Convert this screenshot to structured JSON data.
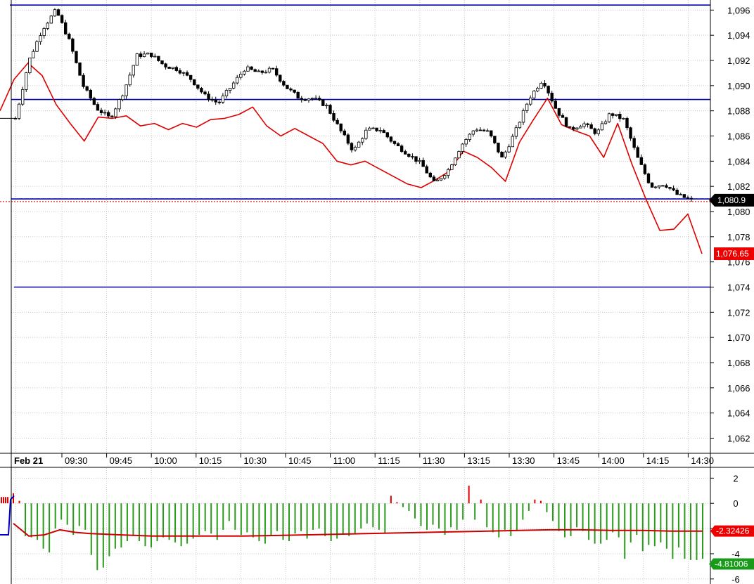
{
  "chart_data": [
    {
      "type": "candlestick",
      "panel": "price",
      "date_label": "Feb 21",
      "time_labels": [
        "09:30",
        "09:45",
        "10:00",
        "10:15",
        "10:30",
        "10:45",
        "11:00",
        "11:15",
        "11:30",
        "13:15",
        "13:30",
        "13:45",
        "14:00",
        "14:15",
        "14:30"
      ],
      "y_ticks": [
        "1,096",
        "1,094",
        "1,092",
        "1,090",
        "1,088",
        "1,086",
        "1,084",
        "1,082",
        "1,080",
        "1,078",
        "1,076",
        "1,074",
        "1,072",
        "1,070",
        "1,068",
        "1,066",
        "1,064",
        "1,062"
      ],
      "y_tick_values": [
        1096,
        1094,
        1092,
        1090,
        1088,
        1086,
        1084,
        1082,
        1080,
        1078,
        1076,
        1074,
        1072,
        1070,
        1068,
        1066,
        1064,
        1062
      ],
      "ylim": [
        1060.8,
        1096.8
      ],
      "horizontal_lines": [
        1096.4,
        1088.9,
        1081.0,
        1074.0
      ],
      "horizontal_line_color": "#0000aa",
      "last_price_label": "1,080.9",
      "last_price": 1080.9,
      "price_closes": [
        1087.4,
        1092.0,
        1094.5,
        1096.0,
        1093.5,
        1090.0,
        1088.2,
        1087.4,
        1089.5,
        1092.4,
        1092.5,
        1091.6,
        1091.3,
        1090.5,
        1089.2,
        1088.6,
        1090.0,
        1091.4,
        1091.0,
        1091.3,
        1089.9,
        1089.0,
        1089.0,
        1088.4,
        1086.5,
        1084.8,
        1086.5,
        1086.5,
        1085.4,
        1084.6,
        1083.8,
        1082.2,
        1083.3,
        1085.3,
        1086.6,
        1086.3,
        1084.2,
        1086.4,
        1089.0,
        1090.5,
        1088.1,
        1086.5,
        1087.0,
        1086.2,
        1087.8,
        1087.3,
        1084.3,
        1082.0,
        1082.2,
        1081.3,
        1080.9
      ],
      "series_colors": {
        "price": "#000000",
        "reference": "#dd0000"
      },
      "reference_label": "1,076.65",
      "reference_values": [
        1088.0,
        1090.5,
        1091.8,
        1090.8,
        1088.5,
        1087.0,
        1085.6,
        1087.5,
        1087.4,
        1087.6,
        1086.8,
        1087.0,
        1086.5,
        1087.0,
        1086.7,
        1087.3,
        1087.4,
        1087.7,
        1088.3,
        1086.8,
        1086.0,
        1086.6,
        1086.0,
        1085.4,
        1084.0,
        1083.7,
        1084.0,
        1083.4,
        1082.8,
        1082.2,
        1081.9,
        1082.5,
        1083.2,
        1084.8,
        1084.3,
        1083.5,
        1082.4,
        1085.5,
        1087.3,
        1089.0,
        1086.9,
        1086.4,
        1086.0,
        1084.3,
        1087.0,
        1083.8,
        1081.0,
        1078.5,
        1078.6,
        1079.8,
        1076.65
      ]
    },
    {
      "type": "bar",
      "panel": "oscillator",
      "y_ticks": [
        "2",
        "0",
        "-2",
        "-4",
        "-6"
      ],
      "y_tick_values": [
        2,
        0,
        -2,
        -4,
        -6
      ],
      "ylim": [
        -6.4,
        2.8
      ],
      "histogram_values": [
        0.8,
        0.2,
        -2.6,
        -2.7,
        -2.9,
        -3.6,
        -3.9,
        -2.0,
        -1.3,
        -1.7,
        -2.5,
        -1.8,
        -2.1,
        -4.1,
        -5.3,
        -5.1,
        -4.2,
        -3.6,
        -3.5,
        -3.0,
        -2.6,
        -3.0,
        -3.4,
        -3.5,
        -3.0,
        -2.7,
        -2.9,
        -3.1,
        -3.4,
        -3.2,
        -2.8,
        -2.5,
        -2.2,
        -2.4,
        -2.9,
        -2.1,
        -1.4,
        -2.1,
        -2.5,
        -2.3,
        -2.7,
        -3.0,
        -3.2,
        -2.6,
        -2.2,
        -2.9,
        -3.0,
        -2.4,
        -2.2,
        -2.8,
        -2.1,
        -2.0,
        -2.6,
        -3.0,
        -2.8,
        -2.4,
        -2.6,
        -2.4,
        -2.0,
        -1.6,
        -1.9,
        -2.1,
        -2.4,
        0.6,
        0.1,
        -0.3,
        -0.6,
        -1.2,
        -1.8,
        -2.1,
        -1.7,
        -2.0,
        -2.5,
        -1.9,
        -2.1,
        -1.3,
        1.4,
        -1.3,
        0.3,
        -1.9,
        -2.3,
        -2.7,
        -2.1,
        -2.6,
        -2.2,
        -1.3,
        -0.6,
        0.3,
        0.2,
        -0.7,
        -1.4,
        -2.2,
        -2.7,
        -2.6,
        -1.9,
        -2.2,
        -2.9,
        -3.2,
        -3.2,
        -2.9,
        -2.3,
        -2.7,
        -4.4,
        -3.1,
        -2.5,
        -3.8,
        -3.3,
        -3.4,
        -3.1,
        -3.6,
        -4.4,
        -3.5,
        -4.4,
        -4.5,
        -4.5,
        -4.4
      ],
      "signal_values": [
        -1.6,
        -2.6,
        -2.5,
        -2.1,
        -2.3,
        -2.4,
        -2.5,
        -2.6,
        -2.6,
        -2.6,
        -2.6,
        -2.55,
        -2.5,
        -2.45,
        -2.4,
        -2.35,
        -2.3,
        -2.25,
        -2.2,
        -2.15,
        -2.1,
        -2.1,
        -2.15,
        -2.15,
        -2.2,
        -2.2
      ],
      "histogram_colors": {
        "positive": "#dd0000",
        "negative": "#2a9a1a"
      },
      "signal_color": "#cc0000",
      "signal_label": "-2.32426",
      "histogram_label": "-4.81006"
    }
  ]
}
